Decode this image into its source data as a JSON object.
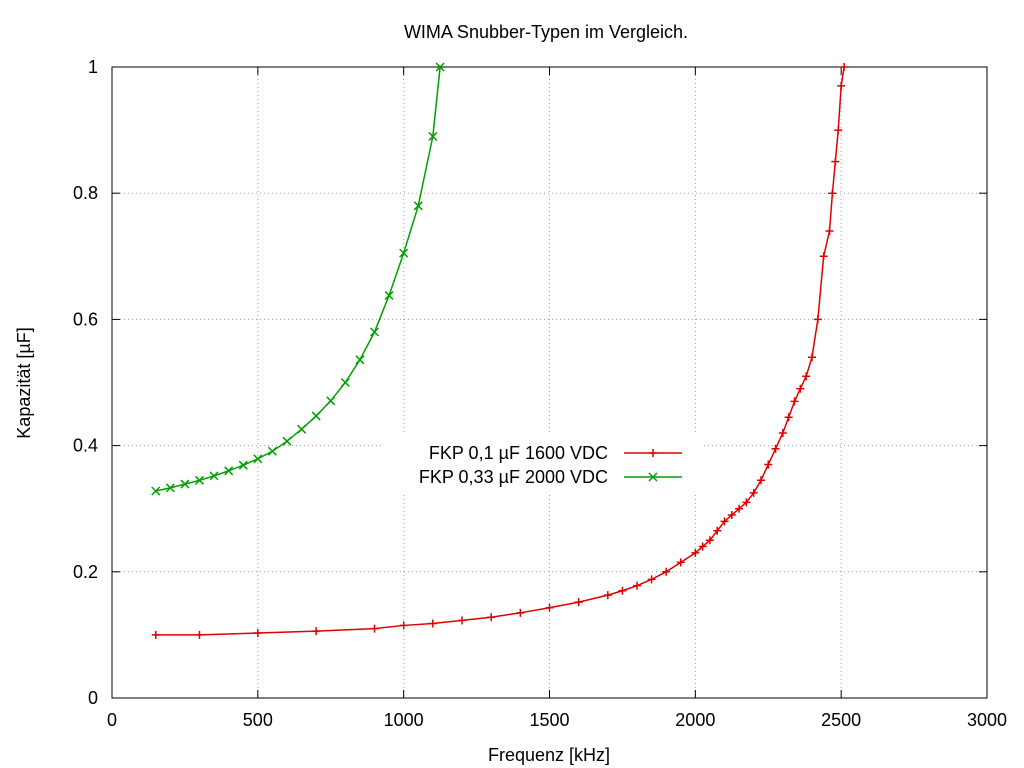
{
  "chart_data": {
    "type": "line",
    "title": "WIMA Snubber-Typen im Vergleich.",
    "xlabel": "Frequenz [kHz]",
    "ylabel": "Kapazität [µF]",
    "xlim": [
      0,
      3000
    ],
    "ylim": [
      0,
      1
    ],
    "x_ticks": [
      0,
      500,
      1000,
      1500,
      2000,
      2500,
      3000
    ],
    "y_ticks": [
      0,
      0.2,
      0.4,
      0.6,
      0.8,
      1
    ],
    "y_tick_labels": [
      "0",
      "0.2",
      "0.4",
      "0.6",
      "0.8",
      "1"
    ],
    "grid": true,
    "legend_position": "center",
    "series": [
      {
        "name": "FKP 0,1 µF 1600 VDC",
        "color": "#e00000",
        "marker": "plus",
        "x": [
          150,
          300,
          500,
          700,
          900,
          1000,
          1100,
          1200,
          1300,
          1400,
          1500,
          1600,
          1700,
          1750,
          1800,
          1850,
          1900,
          1950,
          2000,
          2025,
          2050,
          2075,
          2100,
          2125,
          2150,
          2175,
          2200,
          2225,
          2250,
          2275,
          2300,
          2320,
          2340,
          2360,
          2380,
          2400,
          2420,
          2440,
          2460,
          2470,
          2480,
          2490,
          2500,
          2510
        ],
        "y": [
          0.1,
          0.1,
          0.103,
          0.106,
          0.11,
          0.115,
          0.118,
          0.123,
          0.128,
          0.135,
          0.143,
          0.152,
          0.163,
          0.17,
          0.178,
          0.188,
          0.2,
          0.215,
          0.23,
          0.24,
          0.25,
          0.265,
          0.28,
          0.29,
          0.3,
          0.31,
          0.325,
          0.345,
          0.37,
          0.395,
          0.42,
          0.445,
          0.47,
          0.49,
          0.51,
          0.54,
          0.6,
          0.7,
          0.74,
          0.8,
          0.85,
          0.9,
          0.97,
          1.0
        ]
      },
      {
        "name": "FKP 0,33 µF 2000 VDC",
        "color": "#00a000",
        "marker": "x",
        "x": [
          150,
          200,
          250,
          300,
          350,
          400,
          450,
          500,
          550,
          600,
          650,
          700,
          750,
          800,
          850,
          900,
          950,
          1000,
          1050,
          1100,
          1125
        ],
        "y": [
          0.328,
          0.333,
          0.339,
          0.345,
          0.352,
          0.36,
          0.369,
          0.379,
          0.391,
          0.407,
          0.426,
          0.447,
          0.471,
          0.5,
          0.536,
          0.58,
          0.638,
          0.705,
          0.78,
          0.89,
          1.0
        ]
      }
    ]
  }
}
